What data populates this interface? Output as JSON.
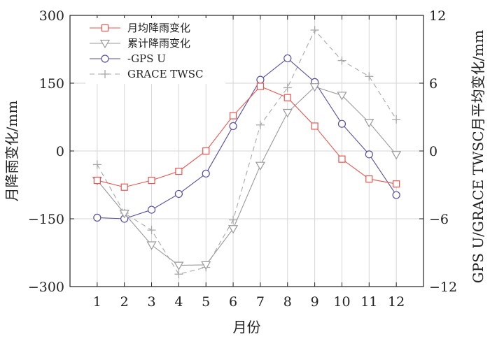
{
  "chart_data": {
    "type": "line",
    "title": "",
    "xlabel": "月份",
    "ylabel_left": "月降雨变化/mm",
    "ylabel_right": "GPS U/GRACE TWSC月平均变化/mm",
    "categories": [
      "1",
      "2",
      "3",
      "4",
      "5",
      "6",
      "7",
      "8",
      "9",
      "10",
      "11",
      "12"
    ],
    "ylim_left": [
      -300,
      300
    ],
    "yticks_left": [
      "300",
      "150",
      "0",
      "−150",
      "−300"
    ],
    "ylim_right": [
      -12,
      12
    ],
    "yticks_right": [
      "12",
      "6",
      "0",
      "−6",
      "−12"
    ],
    "grid": true,
    "legend_position": "top-left",
    "series": [
      {
        "name": "月均降雨变化",
        "axis": "left",
        "color": "#e8554f",
        "marker": "square",
        "dash": "solid",
        "values": [
          -65,
          -80,
          -65,
          -45,
          0,
          78,
          143,
          118,
          55,
          -18,
          -62,
          -73
        ]
      },
      {
        "name": "累计降雨变化",
        "axis": "left",
        "color": "#9a9a9a",
        "marker": "triangle-down",
        "dash": "solid",
        "values": [
          -65,
          -138,
          -208,
          -253,
          -252,
          -172,
          -32,
          85,
          142,
          123,
          63,
          -8
        ]
      },
      {
        "name": "-GPS U",
        "axis": "right",
        "color": "#5a4d9e",
        "marker": "circle",
        "dash": "solid",
        "values": [
          -5.9,
          -6.0,
          -5.2,
          -3.8,
          -2.0,
          2.2,
          6.3,
          8.2,
          6.1,
          2.4,
          -0.3,
          -3.9
        ]
      },
      {
        "name": "GRACE TWSC",
        "axis": "right",
        "color": "#a8a8a8",
        "marker": "plus",
        "dash": "dashed",
        "values": [
          -1.2,
          -5.5,
          -7.0,
          -10.9,
          -10.3,
          -6.1,
          2.3,
          5.6,
          10.7,
          8.0,
          6.6,
          2.8
        ]
      }
    ]
  }
}
